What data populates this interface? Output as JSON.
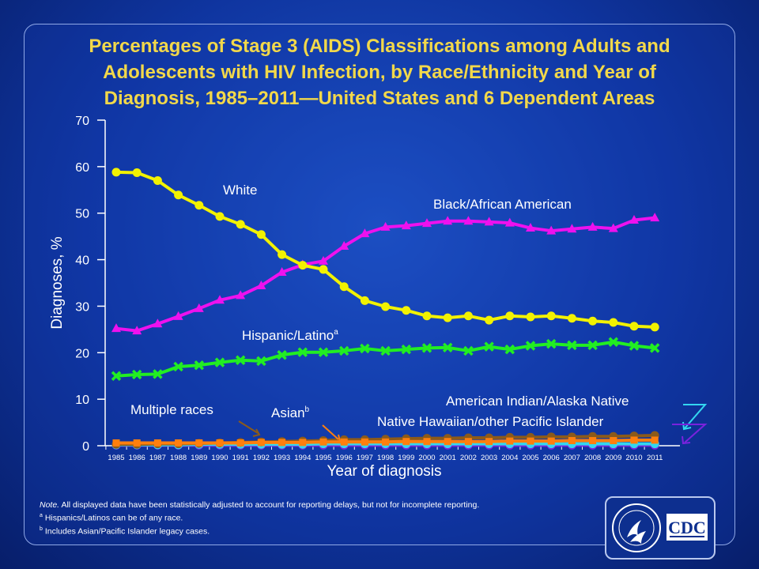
{
  "chart_data": {
    "type": "line",
    "title": "Percentages of Stage 3 (AIDS) Classifications among Adults and Adolescents with HIV Infection, by Race/Ethnicity and Year of Diagnosis, 1985–2011—United States and 6 Dependent Areas",
    "title_lines": [
      "Percentages of Stage 3 (AIDS) Classifications among Adults and",
      "Adolescents with HIV Infection, by Race/Ethnicity and Year of",
      "Diagnosis, 1985–2011—United States and 6 Dependent Areas"
    ],
    "xlabel": "Year of diagnosis",
    "ylabel": "Diagnoses, %",
    "ylim": [
      0,
      70
    ],
    "yticks": [
      "0",
      "10",
      "20",
      "30",
      "40",
      "50",
      "60",
      "70"
    ],
    "categories": [
      "1985",
      "1986",
      "1987",
      "1988",
      "1989",
      "1990",
      "1991",
      "1992",
      "1993",
      "1994",
      "1995",
      "1996",
      "1997",
      "1998",
      "1999",
      "2000",
      "2001",
      "2002",
      "2003",
      "2004",
      "2005",
      "2006",
      "2007",
      "2008",
      "2009",
      "2010",
      "2011"
    ],
    "series": [
      {
        "name": "White",
        "label": "White",
        "color": "#f2f200",
        "marker": "circle",
        "values": [
          58.8,
          58.7,
          57.0,
          53.9,
          51.7,
          49.3,
          47.6,
          45.4,
          41.1,
          38.8,
          37.9,
          34.2,
          31.2,
          29.9,
          29.1,
          27.9,
          27.5,
          27.9,
          27.0,
          27.9,
          27.7,
          27.9,
          27.4,
          26.8,
          26.5,
          25.7,
          25.5
        ]
      },
      {
        "name": "Black/African American",
        "label": "Black/African American",
        "color": "#ee11ee",
        "marker": "triangle",
        "values": [
          25.2,
          24.7,
          26.2,
          27.8,
          29.5,
          31.3,
          32.3,
          34.4,
          37.3,
          38.9,
          39.7,
          42.9,
          45.6,
          47.0,
          47.3,
          47.8,
          48.3,
          48.3,
          48.1,
          47.9,
          46.8,
          46.2,
          46.6,
          47.0,
          46.7,
          48.5,
          49.0
        ]
      },
      {
        "name": "Hispanic/Latino",
        "label": "Hispanic/Latino",
        "label_sup": "a",
        "color": "#22ee22",
        "marker": "x",
        "values": [
          15.0,
          15.3,
          15.4,
          17.0,
          17.3,
          17.9,
          18.4,
          18.2,
          19.5,
          20.1,
          20.1,
          20.4,
          20.9,
          20.4,
          20.7,
          21.0,
          21.1,
          20.4,
          21.3,
          20.7,
          21.5,
          21.9,
          21.6,
          21.6,
          22.3,
          21.5,
          21.0
        ]
      },
      {
        "name": "Asian",
        "label": "Asian",
        "label_sup": "b",
        "color": "#ff7f0e",
        "marker": "square",
        "values": [
          0.6,
          0.6,
          0.6,
          0.6,
          0.6,
          0.6,
          0.6,
          0.7,
          0.7,
          0.7,
          0.8,
          0.8,
          0.8,
          0.8,
          0.9,
          0.9,
          0.9,
          0.9,
          0.9,
          1.0,
          1.0,
          1.0,
          1.1,
          1.1,
          1.1,
          1.2,
          1.2
        ]
      },
      {
        "name": "Multiple races",
        "label": "Multiple races",
        "color": "#8b5a1a",
        "marker": "circle",
        "values": [
          0.3,
          0.3,
          0.4,
          0.4,
          0.5,
          0.6,
          0.7,
          0.8,
          0.9,
          1.0,
          1.1,
          1.3,
          1.3,
          1.4,
          1.5,
          1.6,
          1.6,
          1.7,
          1.7,
          1.8,
          1.8,
          1.9,
          1.9,
          2.0,
          2.0,
          2.1,
          2.2
        ]
      },
      {
        "name": "American Indian/Alaska Native",
        "label": "American Indian/Alaska Native",
        "color": "#33d6f0",
        "marker": "circle",
        "values": [
          0.2,
          0.2,
          0.2,
          0.2,
          0.3,
          0.3,
          0.3,
          0.3,
          0.3,
          0.3,
          0.4,
          0.4,
          0.4,
          0.4,
          0.4,
          0.4,
          0.4,
          0.4,
          0.4,
          0.4,
          0.4,
          0.4,
          0.4,
          0.4,
          0.4,
          0.4,
          0.4
        ]
      },
      {
        "name": "Native Hawaiian/other Pacific Islander",
        "label": "Native Hawaiian/other Pacific Islander",
        "color": "#7a22dd",
        "marker": "circle",
        "values": [
          0.1,
          0.1,
          0.1,
          0.1,
          0.1,
          0.1,
          0.1,
          0.1,
          0.1,
          0.1,
          0.1,
          0.1,
          0.1,
          0.1,
          0.1,
          0.1,
          0.1,
          0.1,
          0.1,
          0.1,
          0.1,
          0.1,
          0.1,
          0.1,
          0.1,
          0.1,
          0.1
        ]
      }
    ]
  },
  "notes": {
    "note_label": "Note.",
    "note_text": "All displayed data have been statistically adjusted to account for reporting delays, but not for incomplete reporting.",
    "footnote_a_marker": "a",
    "footnote_a": "Hispanics/Latinos can be of any race.",
    "footnote_b_marker": "b",
    "footnote_b": "Includes Asian/Pacific Islander legacy cases."
  },
  "logo": {
    "text": "CDC",
    "icon": "hhs-eagle-icon",
    "ring_text": "DEPARTMENT OF HEALTH & HUMAN SERVICES • USA"
  },
  "colors": {
    "title": "#f2d84a",
    "axis": "#ffffff",
    "label_text": "#ffffff"
  }
}
